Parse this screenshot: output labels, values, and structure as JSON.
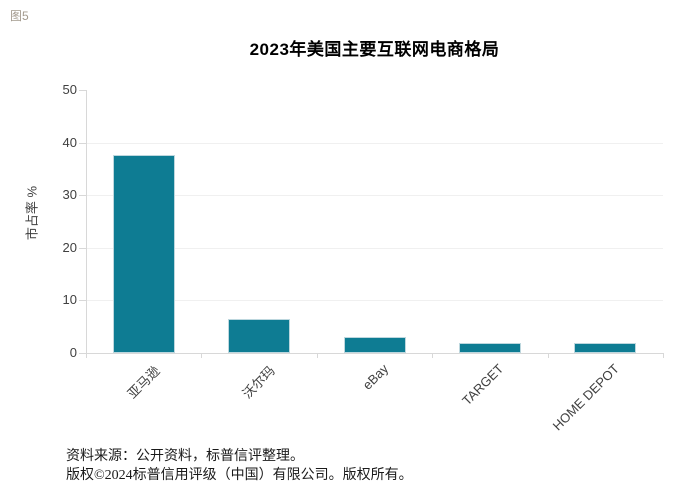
{
  "figure_label": "图5",
  "chart_data": {
    "type": "bar",
    "title": "2023年美国主要互联网电商格局",
    "xlabel": "",
    "ylabel": "市占率 %",
    "categories": [
      "亚马逊",
      "沃尔玛",
      "eBay",
      "TARGET",
      "HOME DEPOT"
    ],
    "values": [
      37.6,
      6.4,
      3.0,
      1.9,
      1.9
    ],
    "ylim": [
      0,
      50
    ],
    "yticks": [
      0,
      10,
      20,
      30,
      40,
      50
    ],
    "grid": "faint horizontal gridlines",
    "legend_position": "none",
    "bar_color": "#0e7c93"
  },
  "footer": {
    "source_line": "资料来源：公开资料，标普信评整理。",
    "copyright_line": "版权©2024标普信用评级（中国）有限公司。版权所有。"
  },
  "colors": {
    "bar": "#0e7c93",
    "bar_border": "#bdd7de",
    "axis": "#d8d8d8",
    "tick_text": "#404040",
    "figure_label_text": "#a39a8e"
  }
}
